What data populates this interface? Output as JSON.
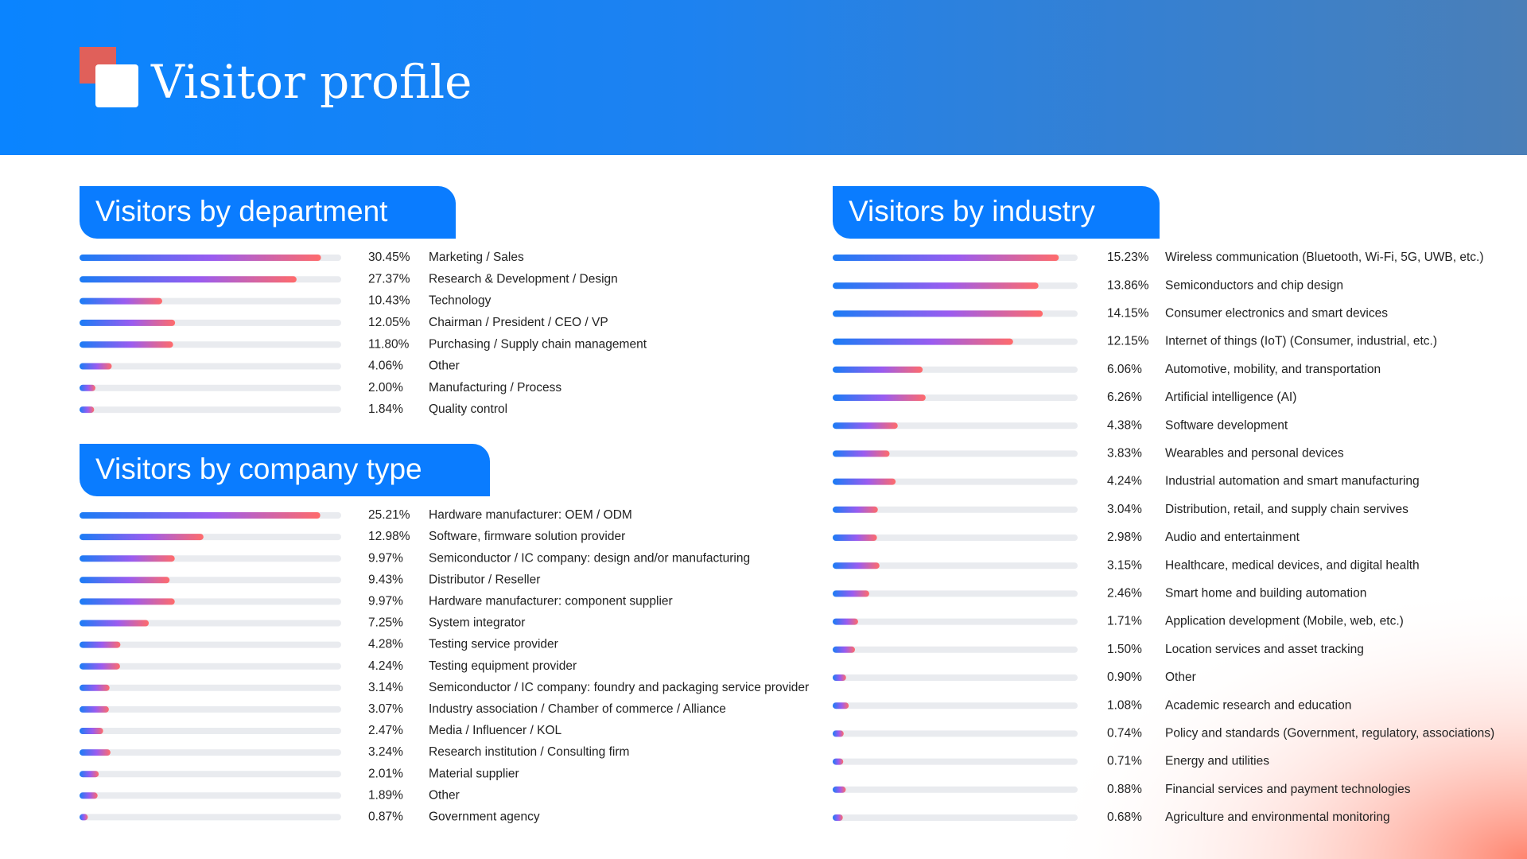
{
  "header": {
    "title": "Visitor profile"
  },
  "sections": [
    {
      "title": "Visitors by department",
      "xlim": [
        0,
        33
      ],
      "items": [
        {
          "value": 30.45,
          "value_label": "30.45%",
          "label": "Marketing / Sales"
        },
        {
          "value": 27.37,
          "value_label": "27.37%",
          "label": "Research & Development / Design"
        },
        {
          "value": 10.43,
          "value_label": "10.43%",
          "label": "Technology"
        },
        {
          "value": 12.05,
          "value_label": "12.05%",
          "label": "Chairman / President / CEO / VP"
        },
        {
          "value": 11.8,
          "value_label": "11.80%",
          "label": "Purchasing / Supply chain management"
        },
        {
          "value": 4.06,
          "value_label": "4.06%",
          "label": "Other"
        },
        {
          "value": 2.0,
          "value_label": "2.00%",
          "label": "Manufacturing / Process"
        },
        {
          "value": 1.84,
          "value_label": "1.84%",
          "label": "Quality control"
        }
      ]
    },
    {
      "title": "Visitors by company type",
      "xlim": [
        0,
        27.4
      ],
      "items": [
        {
          "value": 25.21,
          "value_label": "25.21%",
          "label": "Hardware manufacturer: OEM / ODM"
        },
        {
          "value": 12.98,
          "value_label": "12.98%",
          "label": "Software, firmware solution provider"
        },
        {
          "value": 9.97,
          "value_label": "9.97%",
          "label": "Semiconductor / IC company: design and/or manufacturing"
        },
        {
          "value": 9.43,
          "value_label": "9.43%",
          "label": "Distributor / Reseller"
        },
        {
          "value": 9.97,
          "value_label": "9.97%",
          "label": "Hardware manufacturer: component supplier"
        },
        {
          "value": 7.25,
          "value_label": "7.25%",
          "label": "System integrator"
        },
        {
          "value": 4.28,
          "value_label": "4.28%",
          "label": "Testing service provider"
        },
        {
          "value": 4.24,
          "value_label": "4.24%",
          "label": "Testing equipment provider"
        },
        {
          "value": 3.14,
          "value_label": "3.14%",
          "label": "Semiconductor / IC company: foundry and packaging service provider"
        },
        {
          "value": 3.07,
          "value_label": "3.07%",
          "label": "Industry association / Chamber of commerce / Alliance"
        },
        {
          "value": 2.47,
          "value_label": "2.47%",
          "label": "Media / Influencer / KOL"
        },
        {
          "value": 3.24,
          "value_label": "3.24%",
          "label": "Research institution / Consulting firm"
        },
        {
          "value": 2.01,
          "value_label": "2.01%",
          "label": "Material supplier"
        },
        {
          "value": 1.89,
          "value_label": "1.89%",
          "label": "Other"
        },
        {
          "value": 0.87,
          "value_label": "0.87%",
          "label": "Government agency"
        }
      ]
    },
    {
      "title": "Visitors by industry",
      "xlim": [
        0,
        16.5
      ],
      "items": [
        {
          "value": 15.23,
          "value_label": "15.23%",
          "label": "Wireless communication (Bluetooth, Wi-Fi, 5G, UWB, etc.)"
        },
        {
          "value": 13.86,
          "value_label": "13.86%",
          "label": "Semiconductors and chip design"
        },
        {
          "value": 14.15,
          "value_label": "14.15%",
          "label": "Consumer electronics and smart devices"
        },
        {
          "value": 12.15,
          "value_label": "12.15%",
          "label": "Internet of things (IoT) (Consumer, industrial, etc.)"
        },
        {
          "value": 6.06,
          "value_label": "6.06%",
          "label": "Automotive, mobility, and transportation"
        },
        {
          "value": 6.26,
          "value_label": "6.26%",
          "label": "Artificial intelligence (AI)"
        },
        {
          "value": 4.38,
          "value_label": "4.38%",
          "label": "Software development"
        },
        {
          "value": 3.83,
          "value_label": "3.83%",
          "label": "Wearables and personal devices"
        },
        {
          "value": 4.24,
          "value_label": "4.24%",
          "label": "Industrial automation and smart manufacturing"
        },
        {
          "value": 3.04,
          "value_label": "3.04%",
          "label": "Distribution, retail, and supply chain servives"
        },
        {
          "value": 2.98,
          "value_label": "2.98%",
          "label": "Audio and entertainment"
        },
        {
          "value": 3.15,
          "value_label": "3.15%",
          "label": "Healthcare, medical devices, and digital health"
        },
        {
          "value": 2.46,
          "value_label": "2.46%",
          "label": "Smart home and building automation"
        },
        {
          "value": 1.71,
          "value_label": "1.71%",
          "label": "Application development (Mobile, web, etc.)"
        },
        {
          "value": 1.5,
          "value_label": "1.50%",
          "label": "Location services and asset tracking"
        },
        {
          "value": 0.9,
          "value_label": "0.90%",
          "label": "Other"
        },
        {
          "value": 1.08,
          "value_label": "1.08%",
          "label": "Academic research and education"
        },
        {
          "value": 0.74,
          "value_label": "0.74%",
          "label": "Policy and standards (Government, regulatory, associations)"
        },
        {
          "value": 0.71,
          "value_label": "0.71%",
          "label": "Energy and utilities"
        },
        {
          "value": 0.88,
          "value_label": "0.88%",
          "label": "Financial services and payment technologies"
        },
        {
          "value": 0.68,
          "value_label": "0.68%",
          "label": "Agriculture and environmental monitoring"
        }
      ]
    }
  ]
}
